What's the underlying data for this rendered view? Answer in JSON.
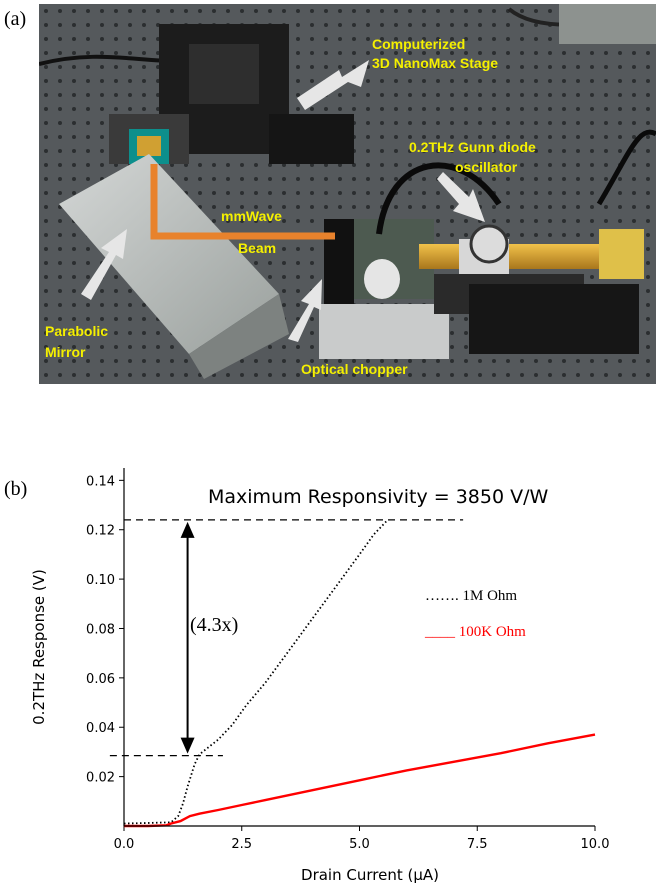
{
  "panel_a": {
    "label": "(a)",
    "annotations": {
      "stage": [
        "Computerized",
        "3D NanoMax Stage"
      ],
      "gunn": [
        "0.2THz Gunn diode",
        "oscillator"
      ],
      "beam": [
        "mmWave",
        "Beam"
      ],
      "mirror": [
        "Parabolic",
        "Mirror"
      ],
      "chopper": "Optical chopper"
    },
    "colors": {
      "annotation_text": "#f5f000",
      "beam": "#e8822c",
      "arrow": "#e6e6e6"
    }
  },
  "panel_b": {
    "label": "(b)",
    "headline": "Maximum Responsivity = 3850 V/W",
    "ratio_label": "(4.3x)",
    "legend": {
      "series_1": "……. 1M Ohm",
      "series_2": "____ 100K Ohm"
    }
  },
  "chart_data": {
    "type": "line",
    "xlabel": "Drain Current (μA)",
    "ylabel": "0.2THz Response (V)",
    "xlim": [
      0,
      10
    ],
    "ylim": [
      0,
      0.145
    ],
    "xticks": [
      "0.0",
      "2.5",
      "5.0",
      "7.5",
      "10.0"
    ],
    "yticks": [
      "0.02",
      "0.04",
      "0.06",
      "0.08",
      "0.10",
      "0.12",
      "0.14"
    ],
    "grid": false,
    "series": [
      {
        "name": "1M Ohm",
        "color": "#000000",
        "style": "dotted",
        "x": [
          0.0,
          0.5,
          1.0,
          1.15,
          1.25,
          1.35,
          1.5,
          1.6,
          1.8,
          2.0,
          2.3,
          2.6,
          3.0,
          3.5,
          4.0,
          4.5,
          5.0,
          5.3,
          5.6
        ],
        "y": [
          0.001,
          0.0012,
          0.0015,
          0.004,
          0.009,
          0.016,
          0.025,
          0.029,
          0.032,
          0.035,
          0.041,
          0.049,
          0.058,
          0.071,
          0.084,
          0.097,
          0.11,
          0.118,
          0.124
        ]
      },
      {
        "name": "100K Ohm",
        "color": "#ff0000",
        "style": "solid",
        "x": [
          0.0,
          0.5,
          0.9,
          1.0,
          1.2,
          1.4,
          1.6,
          2.0,
          2.5,
          3.0,
          4.0,
          5.0,
          6.0,
          7.0,
          8.0,
          9.0,
          10.0
        ],
        "y": [
          0.0,
          0.0,
          0.0003,
          0.001,
          0.002,
          0.004,
          0.005,
          0.0065,
          0.0085,
          0.0105,
          0.0145,
          0.0185,
          0.0225,
          0.026,
          0.0295,
          0.0335,
          0.037
        ]
      }
    ],
    "reference_lines": [
      {
        "y": 0.124,
        "x_from": 0.0,
        "x_to": 7.2
      },
      {
        "y": 0.0285,
        "x_from": -0.3,
        "x_to": 2.1
      }
    ],
    "double_arrow": {
      "x": 1.35,
      "y_from": 0.0285,
      "y_to": 0.124
    }
  }
}
